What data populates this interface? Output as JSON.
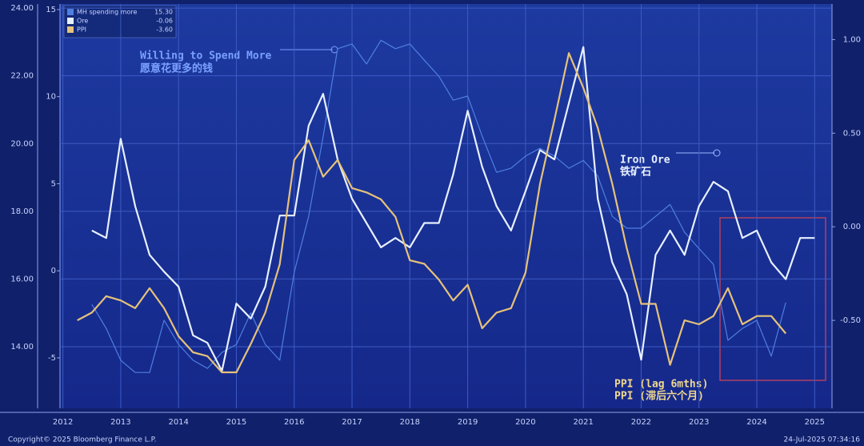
{
  "chart_data": {
    "type": "line",
    "xlim": [
      2012.45,
      2025.8
    ],
    "xticks": [
      {
        "value": 2012.5,
        "label": "2012"
      },
      {
        "value": 2013.5,
        "label": "2013"
      },
      {
        "value": 2014.5,
        "label": "2014"
      },
      {
        "value": 2015.5,
        "label": "2015"
      },
      {
        "value": 2016.5,
        "label": "2016"
      },
      {
        "value": 2017.5,
        "label": "2017"
      },
      {
        "value": 2018.5,
        "label": "2018"
      },
      {
        "value": 2019.5,
        "label": "2019"
      },
      {
        "value": 2020.5,
        "label": "2020"
      },
      {
        "value": 2021.5,
        "label": "2021"
      },
      {
        "value": 2022.5,
        "label": "2022"
      },
      {
        "value": 2023.5,
        "label": "2023"
      },
      {
        "value": 2024.5,
        "label": "2024"
      },
      {
        "value": 2025.5,
        "label": "2025"
      }
    ],
    "ylim": [
      12.18,
      24.12
    ],
    "yticks": [
      {
        "value": 14,
        "label": "14.00"
      },
      {
        "value": 16,
        "label": "16.00"
      },
      {
        "value": 18,
        "label": "18.00"
      },
      {
        "value": 20,
        "label": "20.00"
      },
      {
        "value": 22,
        "label": "22.00"
      },
      {
        "value": 24,
        "label": "24.00"
      }
    ],
    "y2lim": [
      -0.97,
      1.19
    ],
    "y2ticks": [
      {
        "value": -0.5,
        "label": "-0.50"
      },
      {
        "value": 0,
        "label": "0.00"
      },
      {
        "value": 0.5,
        "label": "0.50"
      },
      {
        "value": 1,
        "label": "1.00"
      }
    ],
    "y3lim": [
      -7.9,
      15.32
    ],
    "y3ticks": [
      -5,
      0,
      5,
      10,
      15
    ],
    "grid": true,
    "x": [
      2012.75,
      2013.0,
      2013.25,
      2013.5,
      2013.75,
      2014.0,
      2014.25,
      2014.5,
      2014.75,
      2015.0,
      2015.25,
      2015.5,
      2015.75,
      2016.0,
      2016.25,
      2016.5,
      2016.75,
      2017.0,
      2017.25,
      2017.5,
      2017.75,
      2018.0,
      2018.25,
      2018.5,
      2018.75,
      2019.0,
      2019.25,
      2019.5,
      2019.75,
      2020.0,
      2020.25,
      2020.5,
      2020.75,
      2021.0,
      2021.25,
      2021.5,
      2021.75,
      2022.0,
      2022.25,
      2022.5,
      2022.75,
      2023.0,
      2023.25,
      2023.5,
      2023.75,
      2024.0,
      2024.25,
      2024.5,
      2024.75,
      2025.0,
      2025.25,
      2025.5
    ],
    "series": [
      {
        "name": "MH spending more",
        "color": "#4f7fe0",
        "axis": "y",
        "last": {
          "value": 15.3,
          "label": "15.30"
        },
        "values": [
          null,
          15.25,
          14.54,
          13.6,
          13.24,
          13.24,
          14.78,
          14.07,
          13.6,
          13.36,
          13.83,
          14.07,
          15.0,
          14.07,
          13.6,
          16.2,
          17.85,
          20.2,
          22.8,
          22.94,
          22.35,
          23.05,
          22.8,
          22.94,
          22.46,
          21.99,
          21.28,
          21.4,
          20.22,
          19.15,
          19.27,
          19.63,
          19.86,
          19.63,
          19.27,
          19.5,
          19.04,
          17.85,
          17.5,
          17.5,
          17.85,
          18.2,
          17.38,
          16.9,
          16.43,
          14.19,
          14.54,
          14.78,
          13.72,
          15.3,
          null,
          null
        ]
      },
      {
        "name": "Ore",
        "color": "#e8f0ff",
        "axis": "y2",
        "last": {
          "value": -0.06,
          "label": "-0.06"
        },
        "values": [
          null,
          -0.02,
          -0.06,
          0.47,
          0.11,
          -0.15,
          -0.24,
          -0.32,
          -0.58,
          -0.62,
          -0.77,
          -0.41,
          -0.49,
          -0.32,
          0.06,
          0.06,
          0.54,
          0.71,
          0.36,
          0.15,
          0.02,
          -0.11,
          -0.06,
          -0.11,
          0.02,
          0.02,
          0.28,
          0.62,
          0.32,
          0.11,
          -0.02,
          0.19,
          0.41,
          0.36,
          0.66,
          0.96,
          0.15,
          -0.19,
          -0.36,
          -0.71,
          -0.15,
          -0.02,
          -0.15,
          0.11,
          0.24,
          0.19,
          -0.06,
          -0.02,
          -0.19,
          -0.28,
          -0.06,
          -0.06
        ]
      },
      {
        "name": "PPI",
        "color": "#e6c27a",
        "axis": "y3",
        "last": {
          "value": -3.6,
          "label": "-3.60"
        },
        "values": [
          -2.84,
          -2.4,
          -1.46,
          -1.7,
          -2.15,
          -1.0,
          -2.15,
          -3.76,
          -4.68,
          -4.9,
          -5.83,
          -5.83,
          -4.2,
          -2.4,
          0.38,
          6.36,
          7.5,
          5.4,
          6.36,
          4.75,
          4.5,
          4.1,
          3.1,
          0.6,
          0.4,
          -0.5,
          -1.7,
          -0.8,
          -3.3,
          -2.4,
          -2.15,
          -0.1,
          4.98,
          8.66,
          12.5,
          10.5,
          8.2,
          5.0,
          1.3,
          -1.9,
          -1.9,
          -5.4,
          -2.84,
          -3.07,
          -2.6,
          -1.0,
          -3.07,
          -2.6,
          -2.6,
          -3.6,
          null,
          null
        ]
      }
    ],
    "annotations": [
      "Willing to Spend More",
      "愿意花更多的钱",
      "Iron Ore",
      "铁矿石",
      "PPI (lag 6mths)",
      "PPI (滞后六个月)"
    ],
    "footer": {
      "copyright": "Copyright© 2025 Bloomberg Finance L.P.",
      "timestamp": "24-Jul-2025 07:34:16"
    }
  }
}
